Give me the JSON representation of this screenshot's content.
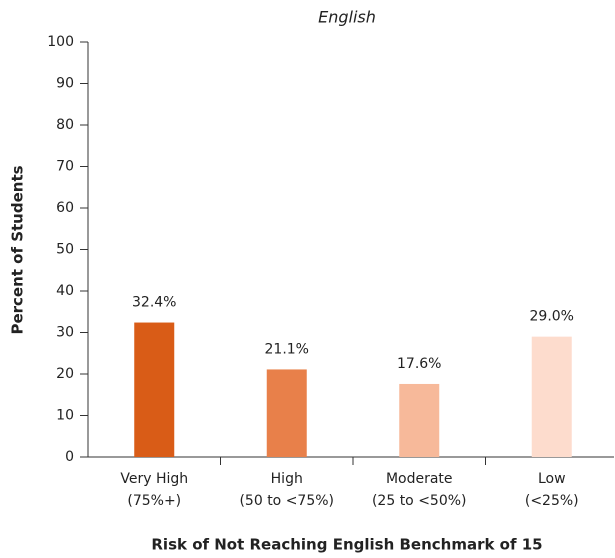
{
  "chart_data": {
    "type": "bar",
    "title": "English",
    "categories": [
      [
        "Very High",
        "(75%+)"
      ],
      [
        "High",
        "(50 to <75%)"
      ],
      [
        "Moderate",
        "(25 to <50%)"
      ],
      [
        "Low",
        "(<25%)"
      ]
    ],
    "values": [
      32.4,
      21.1,
      17.6,
      29.0
    ],
    "value_labels": [
      "32.4%",
      "21.1%",
      "17.6%",
      "29.0%"
    ],
    "colors": [
      "#d95c17",
      "#e8804a",
      "#f7b99a",
      "#fddccd"
    ],
    "xlabel": "Risk of Not Reaching English Benchmark of 15",
    "ylabel": "Percent of Students",
    "ylim": [
      0,
      100
    ],
    "yticks": [
      0,
      10,
      20,
      30,
      40,
      50,
      60,
      70,
      80,
      90,
      100
    ],
    "grid": false
  }
}
